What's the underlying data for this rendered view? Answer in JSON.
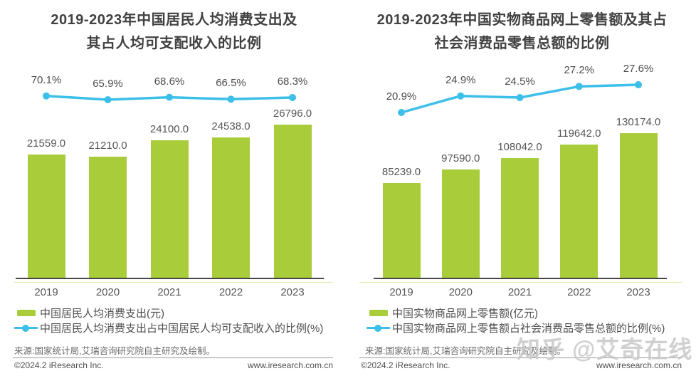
{
  "watermark": "知乎 @艾奇在线",
  "colors": {
    "bar": "#a9cc3a",
    "line": "#3cbfe8",
    "axis": "#474747",
    "axis_underline": "#dce9ad",
    "title": "#414141",
    "label": "#565656",
    "watermark": "#c6c6c6"
  },
  "panels": [
    {
      "title_line1": "2019-2023年中国居民人均消费支出及",
      "title_line2": "其占人均可支配收入的比例",
      "legend": [
        {
          "type": "bar",
          "label": "中国居民人均消费支出(元)"
        },
        {
          "type": "line",
          "label": "中国居民人均消费支出占中国居民人均可支配收入的比例(%)"
        }
      ],
      "source": "来源:国家统计局,艾瑞咨询研究院自主研究及绘制。",
      "footer_left": "©2024.2 iResearch Inc.",
      "footer_right": "www.iresearch.com.cn"
    },
    {
      "title_line1": "2019-2023年中国实物商品网上零售额及其占",
      "title_line2": "社会消费品零售总额的比例",
      "legend": [
        {
          "type": "bar",
          "label": "中国实物商品网上零售额(亿元)"
        },
        {
          "type": "line",
          "label": "中国实物商品网上零售额占社会消费品零售总额的比例(%)"
        }
      ],
      "source": "来源:国家统计局,艾瑞咨询研究院自主研究及绘制。",
      "footer_left": "©2024.2 iResearch Inc.",
      "footer_right": "www.iresearch.com.cn"
    }
  ],
  "chart_data": [
    {
      "type": "bar",
      "title": "2019-2023年中国居民人均消费支出及其占人均可支配收入的比例",
      "categories": [
        "2019",
        "2020",
        "2021",
        "2022",
        "2023"
      ],
      "series": [
        {
          "name": "中国居民人均消费支出(元)",
          "type": "bar",
          "values": [
            21559.0,
            21210.0,
            24100.0,
            24538.0,
            26796.0
          ]
        },
        {
          "name": "中国居民人均消费支出占中国居民人均可支配收入的比例(%)",
          "type": "line",
          "values": [
            70.1,
            65.9,
            68.6,
            66.5,
            68.3
          ]
        }
      ],
      "xlabel": "",
      "ylabel": "",
      "grid": false,
      "legend_position": "bottom",
      "value_label_format": "0.1f",
      "percent_label_format": "0.1f%"
    },
    {
      "type": "bar",
      "title": "2019-2023年中国实物商品网上零售额及其占社会消费品零售总额的比例",
      "categories": [
        "2019",
        "2020",
        "2021",
        "2022",
        "2023"
      ],
      "series": [
        {
          "name": "中国实物商品网上零售额(亿元)",
          "type": "bar",
          "values": [
            85239.0,
            97590.0,
            108042.0,
            119642.0,
            130174.0
          ]
        },
        {
          "name": "中国实物商品网上零售额占社会消费品零售总额的比例(%)",
          "type": "line",
          "values": [
            20.9,
            24.9,
            24.5,
            27.2,
            27.6
          ]
        }
      ],
      "xlabel": "",
      "ylabel": "",
      "grid": false,
      "legend_position": "bottom",
      "value_label_format": "0.1f",
      "percent_label_format": "0.1f%"
    }
  ]
}
